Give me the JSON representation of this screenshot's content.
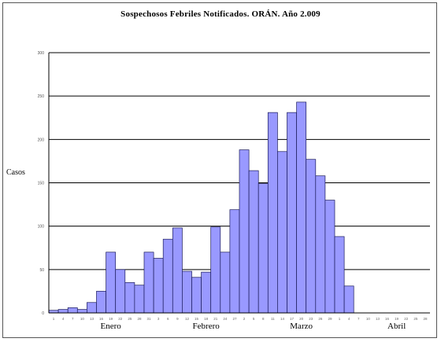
{
  "chart_data": {
    "type": "bar",
    "title": "Sospechosos Febriles Notificados. ORÁN. Año 2.009",
    "ylabel": "Casos",
    "xlabel": "",
    "ylim": [
      0,
      300
    ],
    "yticks": [
      "0",
      "50",
      "100",
      "150",
      "200",
      "250",
      "300"
    ],
    "grid": true,
    "x_tick_labels": [
      "1",
      "4",
      "7",
      "10",
      "13",
      "16",
      "19",
      "22",
      "25",
      "28",
      "31",
      "3",
      "6",
      "9",
      "12",
      "15",
      "18",
      "21",
      "24",
      "27",
      "2",
      "5",
      "8",
      "11",
      "14",
      "17",
      "20",
      "23",
      "26",
      "29",
      "1",
      "4",
      "7",
      "10",
      "13",
      "16",
      "19",
      "22",
      "25",
      "28"
    ],
    "month_labels": [
      {
        "label": "Enero",
        "bin": 6.5
      },
      {
        "label": "Febrero",
        "bin": 16.5
      },
      {
        "label": "Marzo",
        "bin": 26.5
      },
      {
        "label": "Abril",
        "bin": 36.5
      }
    ],
    "values": [
      3,
      4,
      6,
      4,
      12,
      25,
      70,
      50,
      35,
      32,
      70,
      63,
      85,
      98,
      48,
      41,
      47,
      99,
      70,
      119,
      188,
      164,
      149,
      231,
      186,
      231,
      243,
      177,
      158,
      130,
      88,
      31,
      0,
      0,
      0,
      0,
      0,
      0,
      0,
      0
    ],
    "bar_color": "#9999ff",
    "bar_edge_color": "#1a1a5a"
  }
}
